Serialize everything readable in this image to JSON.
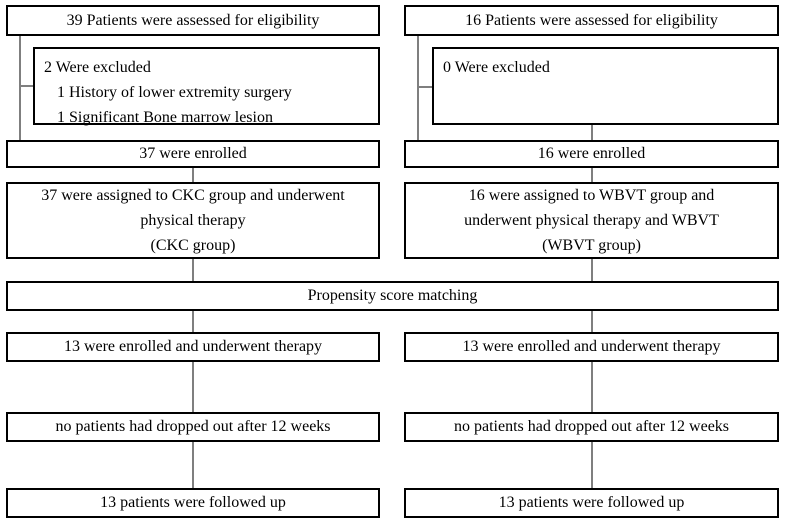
{
  "colors": {
    "background": "#ffffff",
    "box_border": "#000000",
    "connector": "#7f7f7f",
    "text": "#000000"
  },
  "flowchart": {
    "left_arm": {
      "eligibility": "39 Patients were assessed for eligibility",
      "excluded_lines": [
        "2 Were excluded",
        "1 History of lower extremity surgery",
        "1 Significant Bone marrow lesion"
      ],
      "enrolled": "37 were enrolled",
      "assigned_lines": [
        "37 were assigned to CKC group and underwent",
        "physical therapy",
        "(CKC group)"
      ],
      "matched": "13 were enrolled and underwent therapy",
      "dropout": "no patients had dropped out after 12 weeks",
      "followup": "13 patients were followed up"
    },
    "right_arm": {
      "eligibility": "16 Patients were assessed for eligibility",
      "excluded_lines": [
        "0 Were excluded"
      ],
      "enrolled": "16 were enrolled",
      "assigned_lines": [
        "16 were assigned to WBVT group and",
        "underwent physical therapy and WBVT",
        "(WBVT group)"
      ],
      "matched": "13 were enrolled and underwent therapy",
      "dropout": "no patients had dropped out after 12 weeks",
      "followup": "13 patients were followed up"
    },
    "shared": {
      "propensity": "Propensity score matching"
    }
  }
}
